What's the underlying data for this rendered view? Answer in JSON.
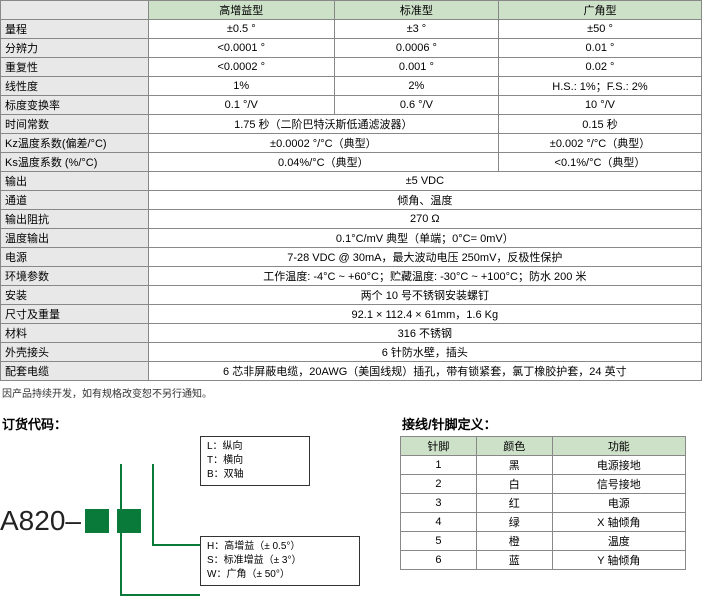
{
  "header_bg": "#cde0c8",
  "label_bg": "#e8e8e8",
  "main": {
    "cols": [
      "高增益型",
      "标准型",
      "广角型"
    ],
    "rows": [
      {
        "label": "量程",
        "v": [
          "±0.5 °",
          "±3 °",
          "±50 °"
        ]
      },
      {
        "label": "分辨力",
        "v": [
          "<0.0001 °",
          "0.0006 °",
          "0.01 °"
        ]
      },
      {
        "label": "重复性",
        "v": [
          "<0.0002 °",
          "0.001 °",
          "0.02 °"
        ]
      },
      {
        "label": "线性度",
        "v": [
          "1%",
          "2%",
          "H.S.: 1%；F.S.: 2%"
        ]
      },
      {
        "label": "标度变换率",
        "v": [
          "0.1 °/V",
          "0.6 °/V",
          "10 °/V"
        ]
      },
      {
        "label": "时间常数",
        "v": [
          "1.75 秒（二阶巴特沃斯低通滤波器）",
          "",
          "0.15 秒"
        ],
        "span": [
          2,
          0,
          1
        ]
      },
      {
        "label": "Kz温度系数(偏差/°C)",
        "v": [
          "±0.0002 °/°C（典型）",
          "",
          "±0.002 °/°C（典型）"
        ],
        "span": [
          2,
          0,
          1
        ]
      },
      {
        "label": "Ks温度系数 (%/°C)",
        "v": [
          "0.04%/°C（典型）",
          "",
          "<0.1%/°C（典型）"
        ],
        "span": [
          2,
          0,
          1
        ]
      },
      {
        "label": "输出",
        "v": [
          "±5 VDC"
        ],
        "span": [
          3
        ]
      },
      {
        "label": "通道",
        "v": [
          "倾角、温度"
        ],
        "span": [
          3
        ]
      },
      {
        "label": "输出阻抗",
        "v": [
          "270 Ω"
        ],
        "span": [
          3
        ]
      },
      {
        "label": "温度输出",
        "v": [
          "0.1°C/mV 典型（单端；0°C= 0mV）"
        ],
        "span": [
          3
        ]
      },
      {
        "label": "电源",
        "v": [
          "7-28 VDC @ 30mA，最大波动电压 250mV，反极性保护"
        ],
        "span": [
          3
        ]
      },
      {
        "label": "环境参数",
        "v": [
          "工作温度: -4°C ~ +60°C；贮藏温度: -30°C ~ +100°C；防水 200 米"
        ],
        "span": [
          3
        ]
      },
      {
        "label": "安装",
        "v": [
          "两个 10 号不锈钢安装螺钉"
        ],
        "span": [
          3
        ]
      },
      {
        "label": "尺寸及重量",
        "v": [
          "92.1 × 112.4 × 61mm，1.6 Kg"
        ],
        "span": [
          3
        ]
      },
      {
        "label": "材料",
        "v": [
          "316 不锈钢"
        ],
        "span": [
          3
        ]
      },
      {
        "label": "外壳接头",
        "v": [
          "6 针防水壁，插头"
        ],
        "span": [
          3
        ]
      },
      {
        "label": "配套电缆",
        "v": [
          "6 芯非屏蔽电缆，20AWG（美国线规）插孔，带有锁紧套，氯丁橡胶护套，24 英寸"
        ],
        "span": [
          3
        ]
      }
    ]
  },
  "note": "因产品持续开发，如有规格改变恕不另行通知。",
  "order_title": "订货代码：",
  "order_code": "A820",
  "order_dash": " – ",
  "legend1": [
    {
      "k": "L",
      "t": "纵向"
    },
    {
      "k": "T",
      "t": "横向"
    },
    {
      "k": "B",
      "t": "双轴"
    }
  ],
  "legend2": [
    {
      "k": "H",
      "t": "高增益（± 0.5°）"
    },
    {
      "k": "S",
      "t": "标准增益（± 3°）"
    },
    {
      "k": "W",
      "t": "广角（± 50°）"
    }
  ],
  "pin_title": "接线/针脚定义：",
  "pin_cols": [
    "针脚",
    "颜色",
    "功能"
  ],
  "pin_rows": [
    [
      "1",
      "黑",
      "电源接地"
    ],
    [
      "2",
      "白",
      "信号接地"
    ],
    [
      "3",
      "红",
      "电源"
    ],
    [
      "4",
      "绿",
      "X 轴倾角"
    ],
    [
      "5",
      "橙",
      "温度"
    ],
    [
      "6",
      "蓝",
      "Y 轴倾角"
    ]
  ]
}
